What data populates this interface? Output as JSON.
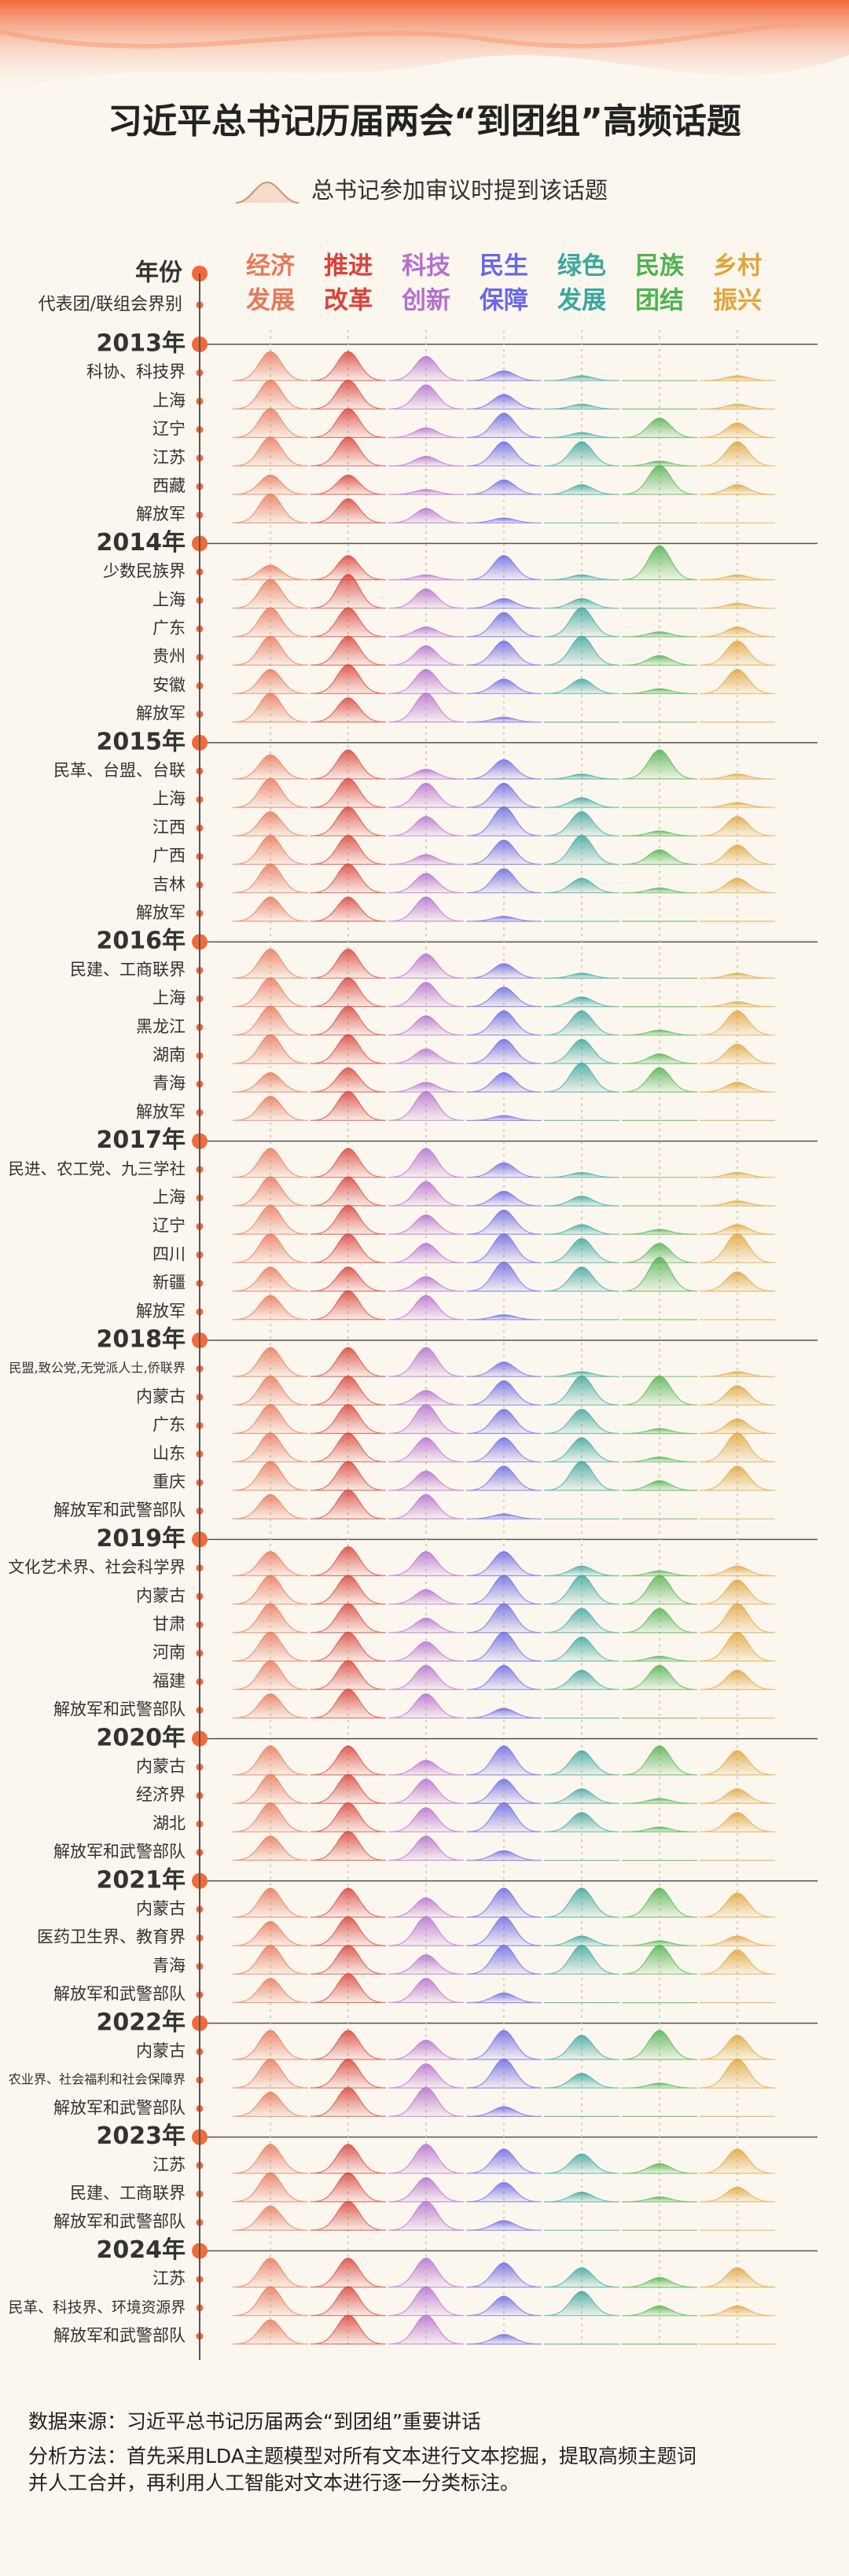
{
  "header": {
    "title": "习近平总书记历届两会“到团组”高频话题",
    "subtitle": "总书记参加审议时提到该话题"
  },
  "column_headers": {
    "year": "年份",
    "group": "代表团/联组会界别"
  },
  "topics": [
    {
      "label_lines": [
        "经济",
        "发展"
      ],
      "color": "#e8785a"
    },
    {
      "label_lines": [
        "推进",
        "改革"
      ],
      "color": "#d9433a"
    },
    {
      "label_lines": [
        "科技",
        "创新"
      ],
      "color": "#b56fd0"
    },
    {
      "label_lines": [
        "民生",
        "保障"
      ],
      "color": "#6a68e6"
    },
    {
      "label_lines": [
        "绿色",
        "发展"
      ],
      "color": "#3aa79f"
    },
    {
      "label_lines": [
        "民族",
        "团结"
      ],
      "color": "#4fb34f"
    },
    {
      "label_lines": [
        "乡村",
        "振兴"
      ],
      "color": "#e0a53a"
    }
  ],
  "years": [
    {
      "year": "2013年",
      "groups": [
        {
          "name": "科协、科技界",
          "values": [
            6,
            6,
            5,
            2,
            1,
            0,
            1
          ]
        },
        {
          "name": "上海",
          "values": [
            6,
            6,
            5,
            3,
            1,
            0,
            1
          ]
        },
        {
          "name": "辽宁",
          "values": [
            6,
            6,
            2,
            5,
            1,
            4,
            3
          ]
        },
        {
          "name": "江苏",
          "values": [
            6,
            6,
            2,
            5,
            5,
            1,
            5
          ]
        },
        {
          "name": "西藏",
          "values": [
            4,
            4,
            1,
            3,
            2,
            6,
            2
          ]
        },
        {
          "name": "解放军",
          "values": [
            6,
            5,
            3,
            1,
            0,
            0,
            0
          ]
        }
      ]
    },
    {
      "year": "2014年",
      "groups": [
        {
          "name": "少数民族界",
          "values": [
            3,
            5,
            1,
            5,
            1,
            7,
            1
          ]
        },
        {
          "name": "上海",
          "values": [
            6,
            7,
            4,
            2,
            2,
            0,
            1
          ]
        },
        {
          "name": "广东",
          "values": [
            6,
            6,
            2,
            5,
            6,
            1,
            2
          ]
        },
        {
          "name": "贵州",
          "values": [
            6,
            6,
            4,
            5,
            6,
            2,
            5
          ]
        },
        {
          "name": "安徽",
          "values": [
            5,
            6,
            5,
            3,
            3,
            1,
            5
          ]
        },
        {
          "name": "解放军",
          "values": [
            6,
            5,
            6,
            1,
            0,
            0,
            0
          ]
        }
      ]
    },
    {
      "year": "2015年",
      "groups": [
        {
          "name": "民革、台盟、台联",
          "values": [
            5,
            6,
            2,
            4,
            1,
            6,
            1
          ]
        },
        {
          "name": "上海",
          "values": [
            6,
            6,
            5,
            5,
            2,
            0,
            1
          ]
        },
        {
          "name": "江西",
          "values": [
            5,
            6,
            4,
            6,
            5,
            1,
            4
          ]
        },
        {
          "name": "广西",
          "values": [
            6,
            6,
            2,
            5,
            6,
            3,
            4
          ]
        },
        {
          "name": "吉林",
          "values": [
            6,
            6,
            4,
            5,
            3,
            1,
            3
          ]
        },
        {
          "name": "解放军",
          "values": [
            5,
            5,
            5,
            1,
            0,
            0,
            0
          ]
        }
      ]
    },
    {
      "year": "2016年",
      "groups": [
        {
          "name": "民建、工商联界",
          "values": [
            6,
            6,
            5,
            3,
            1,
            0,
            1
          ]
        },
        {
          "name": "上海",
          "values": [
            6,
            6,
            5,
            4,
            2,
            0,
            1
          ]
        },
        {
          "name": "黑龙江",
          "values": [
            6,
            6,
            4,
            5,
            5,
            1,
            5
          ]
        },
        {
          "name": "湖南",
          "values": [
            6,
            6,
            3,
            5,
            5,
            2,
            4
          ]
        },
        {
          "name": "青海",
          "values": [
            4,
            5,
            2,
            4,
            6,
            5,
            2
          ]
        },
        {
          "name": "解放军",
          "values": [
            5,
            6,
            6,
            1,
            0,
            0,
            0
          ]
        }
      ]
    },
    {
      "year": "2017年",
      "groups": [
        {
          "name": "民进、农工党、九三学社",
          "values": [
            6,
            6,
            6,
            3,
            1,
            0,
            1
          ]
        },
        {
          "name": "上海",
          "values": [
            6,
            6,
            5,
            3,
            2,
            0,
            1
          ]
        },
        {
          "name": "辽宁",
          "values": [
            6,
            6,
            4,
            5,
            2,
            1,
            2
          ]
        },
        {
          "name": "四川",
          "values": [
            6,
            6,
            4,
            6,
            5,
            4,
            6
          ]
        },
        {
          "name": "新疆",
          "values": [
            5,
            5,
            3,
            6,
            5,
            7,
            4
          ]
        },
        {
          "name": "解放军",
          "values": [
            5,
            6,
            5,
            1,
            0,
            0,
            0
          ]
        }
      ]
    },
    {
      "year": "2018年",
      "groups": [
        {
          "name": "民盟,致公党,无党派人士,侨联界",
          "values": [
            6,
            6,
            6,
            3,
            1,
            0,
            1
          ]
        },
        {
          "name": "内蒙古",
          "values": [
            6,
            6,
            3,
            5,
            6,
            6,
            4
          ]
        },
        {
          "name": "广东",
          "values": [
            6,
            6,
            6,
            5,
            5,
            1,
            3
          ]
        },
        {
          "name": "山东",
          "values": [
            6,
            6,
            5,
            5,
            5,
            1,
            6
          ]
        },
        {
          "name": "重庆",
          "values": [
            6,
            6,
            4,
            5,
            6,
            2,
            5
          ]
        },
        {
          "name": "解放军和武警部队",
          "values": [
            5,
            6,
            5,
            1,
            0,
            0,
            0
          ]
        }
      ]
    },
    {
      "year": "2019年",
      "groups": [
        {
          "name": "文化艺术界、社会科学界",
          "values": [
            5,
            6,
            5,
            5,
            2,
            1,
            2
          ]
        },
        {
          "name": "内蒙古",
          "values": [
            6,
            6,
            3,
            6,
            6,
            6,
            5
          ]
        },
        {
          "name": "甘肃",
          "values": [
            6,
            6,
            3,
            6,
            5,
            5,
            6
          ]
        },
        {
          "name": "河南",
          "values": [
            6,
            6,
            4,
            6,
            5,
            1,
            6
          ]
        },
        {
          "name": "福建",
          "values": [
            6,
            6,
            5,
            5,
            4,
            5,
            4
          ]
        },
        {
          "name": "解放军和武警部队",
          "values": [
            5,
            6,
            5,
            2,
            0,
            0,
            0
          ]
        }
      ]
    },
    {
      "year": "2020年",
      "groups": [
        {
          "name": "内蒙古",
          "values": [
            6,
            6,
            3,
            6,
            5,
            6,
            5
          ]
        },
        {
          "name": "经济界",
          "values": [
            6,
            6,
            5,
            5,
            3,
            1,
            3
          ]
        },
        {
          "name": "湖北",
          "values": [
            6,
            6,
            5,
            6,
            4,
            1,
            4
          ]
        },
        {
          "name": "解放军和武警部队",
          "values": [
            5,
            6,
            5,
            2,
            0,
            0,
            0
          ]
        }
      ]
    },
    {
      "year": "2021年",
      "groups": [
        {
          "name": "内蒙古",
          "values": [
            6,
            6,
            4,
            6,
            6,
            6,
            5
          ]
        },
        {
          "name": "医药卫生界、教育界",
          "values": [
            5,
            6,
            6,
            6,
            2,
            1,
            2
          ]
        },
        {
          "name": "青海",
          "values": [
            6,
            6,
            4,
            6,
            6,
            6,
            5
          ]
        },
        {
          "name": "解放军和武警部队",
          "values": [
            5,
            6,
            5,
            2,
            0,
            0,
            0
          ]
        }
      ]
    },
    {
      "year": "2022年",
      "groups": [
        {
          "name": "内蒙古",
          "values": [
            6,
            6,
            4,
            6,
            5,
            6,
            5
          ]
        },
        {
          "name": "农业界、社会福利和社会保障界",
          "values": [
            6,
            6,
            5,
            6,
            3,
            1,
            6
          ]
        },
        {
          "name": "解放军和武警部队",
          "values": [
            5,
            6,
            6,
            2,
            0,
            0,
            0
          ]
        }
      ]
    },
    {
      "year": "2023年",
      "groups": [
        {
          "name": "江苏",
          "values": [
            6,
            6,
            6,
            5,
            4,
            2,
            5
          ]
        },
        {
          "name": "民建、工商联界",
          "values": [
            6,
            6,
            5,
            4,
            2,
            1,
            3
          ]
        },
        {
          "name": "解放军和武警部队",
          "values": [
            5,
            6,
            6,
            2,
            0,
            0,
            0
          ]
        }
      ]
    },
    {
      "year": "2024年",
      "groups": [
        {
          "name": "江苏",
          "values": [
            6,
            6,
            6,
            5,
            4,
            2,
            4
          ]
        },
        {
          "name": "民革、科技界、环境资源界",
          "values": [
            6,
            6,
            6,
            4,
            5,
            2,
            2
          ]
        },
        {
          "name": "解放军和武警部队",
          "values": [
            5,
            6,
            6,
            2,
            0,
            0,
            0
          ]
        }
      ]
    }
  ],
  "footer": {
    "source": "数据来源：习近平总书记历届两会“到团组”重要讲话",
    "method_lines": [
      "分析方法：首先采用LDA主题模型对所有文本进行文本挖掘，提取高频主题词",
      "并人工合并，再利用人工智能对文本进行逐一分类标注。"
    ]
  }
}
